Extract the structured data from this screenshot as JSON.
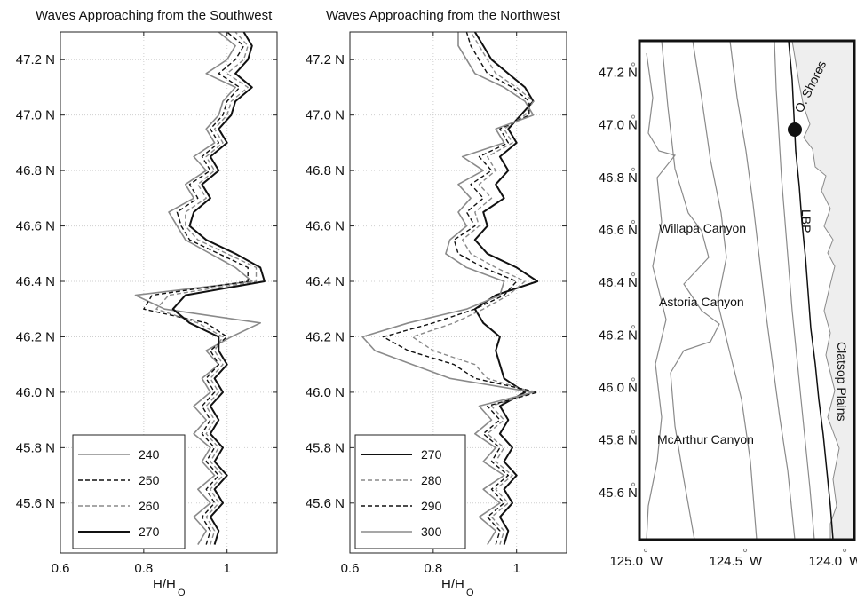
{
  "chart_data": [
    {
      "type": "line",
      "title": "Waves Approaching from the Southwest",
      "xlabel": "H/H",
      "xlabel_sub": "O",
      "xlim": [
        0.6,
        1.12
      ],
      "ylim": [
        45.42,
        47.3
      ],
      "xticks": [
        {
          "v": 0.6,
          "label": "0.6"
        },
        {
          "v": 0.8,
          "label": "0.8"
        },
        {
          "v": 1.0,
          "label": "1"
        }
      ],
      "yticks": [
        {
          "v": 45.6,
          "label": "45.6 N"
        },
        {
          "v": 45.8,
          "label": "45.8 N"
        },
        {
          "v": 46.0,
          "label": "46.0 N"
        },
        {
          "v": 46.2,
          "label": "46.2 N"
        },
        {
          "v": 46.4,
          "label": "46.4 N"
        },
        {
          "v": 46.6,
          "label": "46.6 N"
        },
        {
          "v": 46.8,
          "label": "46.8 N"
        },
        {
          "v": 47.0,
          "label": "47.0 N"
        },
        {
          "v": 47.2,
          "label": "47.2 N"
        }
      ],
      "latitudes": [
        45.45,
        45.5,
        45.55,
        45.6,
        45.65,
        45.7,
        45.75,
        45.8,
        45.85,
        45.9,
        45.95,
        46.0,
        46.05,
        46.1,
        46.15,
        46.2,
        46.25,
        46.3,
        46.35,
        46.4,
        46.45,
        46.5,
        46.55,
        46.6,
        46.65,
        46.7,
        46.75,
        46.8,
        46.85,
        46.9,
        46.95,
        47.0,
        47.05,
        47.1,
        47.15,
        47.2,
        47.25,
        47.3
      ],
      "series": [
        {
          "name": "240",
          "color": "#8a8a8a",
          "dash": "",
          "width": 1.6,
          "values": [
            0.93,
            0.95,
            0.92,
            0.96,
            0.93,
            0.97,
            0.94,
            0.96,
            0.92,
            0.95,
            0.92,
            0.96,
            0.94,
            0.98,
            0.95,
            1.01,
            1.08,
            0.85,
            0.78,
            1.06,
            1.02,
            0.96,
            0.9,
            0.88,
            0.86,
            0.92,
            0.9,
            0.95,
            0.92,
            0.97,
            0.95,
            0.98,
            0.99,
            1.02,
            0.95,
            1.0,
            1.02,
            0.98
          ]
        },
        {
          "name": "250",
          "color": "#111111",
          "dash": "5 3",
          "width": 1.4,
          "values": [
            0.95,
            0.96,
            0.94,
            0.97,
            0.95,
            0.98,
            0.95,
            0.97,
            0.94,
            0.96,
            0.94,
            0.97,
            0.95,
            0.98,
            0.96,
            1.0,
            0.95,
            0.8,
            0.82,
            1.05,
            1.05,
            0.98,
            0.91,
            0.89,
            0.88,
            0.93,
            0.91,
            0.96,
            0.94,
            0.98,
            0.96,
            0.99,
            1.0,
            1.03,
            0.98,
            1.02,
            1.04,
            1.0
          ]
        },
        {
          "name": "260",
          "color": "#8a8a8a",
          "dash": "5 3",
          "width": 1.4,
          "values": [
            0.96,
            0.97,
            0.95,
            0.98,
            0.96,
            0.99,
            0.96,
            0.98,
            0.95,
            0.97,
            0.95,
            0.98,
            0.96,
            0.99,
            0.97,
            0.99,
            0.93,
            0.83,
            0.86,
            1.07,
            1.07,
            1.0,
            0.93,
            0.9,
            0.9,
            0.95,
            0.93,
            0.97,
            0.95,
            0.99,
            0.97,
            1.0,
            1.01,
            1.05,
            1.0,
            1.04,
            1.05,
            1.02
          ]
        },
        {
          "name": "270",
          "color": "#111111",
          "dash": "",
          "width": 2.0,
          "values": [
            0.97,
            0.98,
            0.96,
            0.99,
            0.97,
            1.0,
            0.97,
            0.99,
            0.96,
            0.98,
            0.96,
            0.99,
            0.97,
            1.0,
            0.98,
            0.98,
            0.91,
            0.87,
            0.9,
            1.09,
            1.08,
            1.02,
            0.95,
            0.91,
            0.92,
            0.96,
            0.94,
            0.98,
            0.96,
            1.0,
            0.98,
            1.01,
            1.02,
            1.06,
            1.02,
            1.05,
            1.06,
            1.04
          ]
        }
      ],
      "legend_pos": "bottom-left"
    },
    {
      "type": "line",
      "title": "Waves Approaching from the Northwest",
      "xlabel": "H/H",
      "xlabel_sub": "O",
      "xlim": [
        0.6,
        1.12
      ],
      "ylim": [
        45.42,
        47.3
      ],
      "xticks": [
        {
          "v": 0.6,
          "label": "0.6"
        },
        {
          "v": 0.8,
          "label": "0.8"
        },
        {
          "v": 1.0,
          "label": "1"
        }
      ],
      "yticks": [
        {
          "v": 45.6,
          "label": "45.6 N"
        },
        {
          "v": 45.8,
          "label": "45.8 N"
        },
        {
          "v": 46.0,
          "label": "46.0 N"
        },
        {
          "v": 46.2,
          "label": "46.2 N"
        },
        {
          "v": 46.4,
          "label": "46.4 N"
        },
        {
          "v": 46.6,
          "label": "46.6 N"
        },
        {
          "v": 46.8,
          "label": "46.8 N"
        },
        {
          "v": 47.0,
          "label": "47.0 N"
        },
        {
          "v": 47.2,
          "label": "47.2 N"
        }
      ],
      "latitudes": [
        45.45,
        45.5,
        45.55,
        45.6,
        45.65,
        45.7,
        45.75,
        45.8,
        45.85,
        45.9,
        45.95,
        46.0,
        46.05,
        46.1,
        46.15,
        46.2,
        46.25,
        46.3,
        46.35,
        46.4,
        46.45,
        46.5,
        46.55,
        46.6,
        46.65,
        46.7,
        46.75,
        46.8,
        46.85,
        46.9,
        46.95,
        47.0,
        47.05,
        47.1,
        47.15,
        47.2,
        47.25,
        47.3
      ],
      "series": [
        {
          "name": "270",
          "color": "#111111",
          "dash": "",
          "width": 2.0,
          "values": [
            0.97,
            0.98,
            0.96,
            0.99,
            0.97,
            1.0,
            0.97,
            0.99,
            0.96,
            0.98,
            0.96,
            1.02,
            0.97,
            0.96,
            0.95,
            0.96,
            0.92,
            0.9,
            0.95,
            1.05,
            1.0,
            0.93,
            0.9,
            0.93,
            0.92,
            0.97,
            0.95,
            0.98,
            0.96,
            1.0,
            0.98,
            1.01,
            1.04,
            1.02,
            0.98,
            0.94,
            0.92,
            0.9
          ]
        },
        {
          "name": "280",
          "color": "#8a8a8a",
          "dash": "5 3",
          "width": 1.4,
          "values": [
            0.96,
            0.97,
            0.94,
            0.98,
            0.95,
            0.99,
            0.95,
            0.97,
            0.93,
            0.97,
            0.94,
            1.04,
            0.93,
            0.9,
            0.8,
            0.75,
            0.85,
            0.92,
            0.98,
            1.02,
            0.95,
            0.89,
            0.87,
            0.91,
            0.9,
            0.94,
            0.91,
            0.95,
            0.93,
            0.99,
            0.97,
            1.02,
            1.04,
            1.0,
            0.95,
            0.93,
            0.91,
            0.89
          ]
        },
        {
          "name": "290",
          "color": "#111111",
          "dash": "5 3",
          "width": 1.4,
          "values": [
            0.95,
            0.96,
            0.93,
            0.97,
            0.94,
            0.98,
            0.94,
            0.96,
            0.92,
            0.96,
            0.93,
            1.05,
            0.9,
            0.85,
            0.74,
            0.68,
            0.8,
            0.9,
            0.97,
            1.0,
            0.92,
            0.86,
            0.85,
            0.9,
            0.88,
            0.92,
            0.89,
            0.94,
            0.91,
            0.98,
            0.96,
            1.03,
            1.03,
            0.99,
            0.93,
            0.91,
            0.89,
            0.88
          ]
        },
        {
          "name": "300",
          "color": "#8a8a8a",
          "dash": "",
          "width": 1.6,
          "values": [
            0.93,
            0.95,
            0.91,
            0.96,
            0.92,
            0.97,
            0.92,
            0.95,
            0.9,
            0.94,
            0.91,
            1.04,
            0.84,
            0.75,
            0.66,
            0.63,
            0.74,
            0.88,
            0.96,
            0.97,
            0.88,
            0.83,
            0.84,
            0.88,
            0.86,
            0.89,
            0.86,
            0.92,
            0.87,
            0.97,
            0.95,
            1.04,
            1.02,
            0.97,
            0.9,
            0.88,
            0.86,
            0.86
          ]
        }
      ],
      "legend_pos": "bottom-left"
    }
  ],
  "map": {
    "lat_ticks": [
      {
        "v": 45.6,
        "label": "45.6"
      },
      {
        "v": 45.8,
        "label": "45.8"
      },
      {
        "v": 46.0,
        "label": "46.0"
      },
      {
        "v": 46.2,
        "label": "46.2"
      },
      {
        "v": 46.4,
        "label": "46.4"
      },
      {
        "v": 46.6,
        "label": "46.6"
      },
      {
        "v": 46.8,
        "label": "46.8"
      },
      {
        "v": 47.0,
        "label": "47.0"
      },
      {
        "v": 47.2,
        "label": "47.2"
      }
    ],
    "lat_unit": "N",
    "lon_ticks": [
      {
        "v": -125.0,
        "label": "125.0"
      },
      {
        "v": -124.5,
        "label": "124.5"
      },
      {
        "v": -124.0,
        "label": "124.0"
      }
    ],
    "lon_unit": "W",
    "labels": {
      "willapa": "Willapa Canyon",
      "astoria": "Astoria Canyon",
      "mcarthur": "McArthur Canyon",
      "lbp": "LBP",
      "clatsop": "Clatsop Plains",
      "shores": "O. Shores"
    },
    "colors": {
      "land": "#eeeeee",
      "frame": "#111111",
      "contour": "#8a8a8a"
    }
  }
}
